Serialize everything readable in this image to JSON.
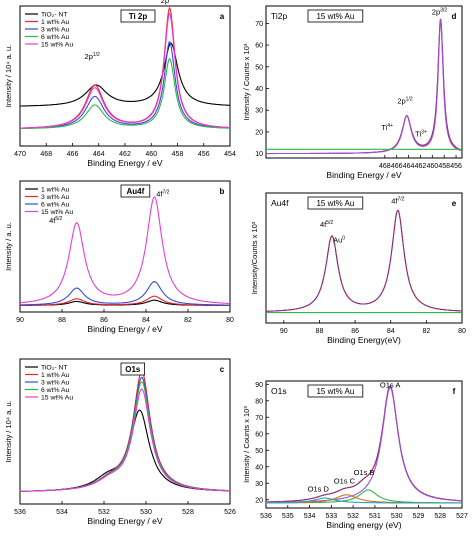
{
  "chart_data": [
    {
      "id": "a",
      "type": "line",
      "panel_letter": "a",
      "boxed_title": "Ti 2p",
      "xlabel": "Binding Energy / eV",
      "ylabel": "Intensity / 10⁴ a. u.",
      "xlim": [
        470,
        454
      ],
      "xticks": [
        "470",
        "468",
        "466",
        "464",
        "462",
        "460",
        "458",
        "456",
        "454"
      ],
      "ylim": [
        0,
        1
      ],
      "grid": false,
      "legend_position": "top-left",
      "legend": [
        "TiO₂- NT",
        "1 wt% Au",
        "3 wt% Au",
        "6 wt% Au",
        "15 wt% Au"
      ],
      "series": [
        {
          "name": "TiO₂- NT",
          "color": "#000000",
          "baseline": 0.28,
          "peaks": [
            {
              "center": 458.5,
              "height": 0.45,
              "width": 0.65
            },
            {
              "center": 464.2,
              "height": 0.15,
              "width": 1.0
            }
          ]
        },
        {
          "name": "1 wt% Au",
          "color": "#e8242b",
          "baseline": 0.12,
          "peaks": [
            {
              "center": 458.6,
              "height": 0.86,
              "width": 0.5
            },
            {
              "center": 464.3,
              "height": 0.31,
              "width": 0.85
            }
          ]
        },
        {
          "name": "3 wt% Au",
          "color": "#3a4bd6",
          "baseline": 0.12,
          "peaks": [
            {
              "center": 458.6,
              "height": 0.62,
              "width": 0.5
            },
            {
              "center": 464.3,
              "height": 0.23,
              "width": 0.85
            }
          ]
        },
        {
          "name": "6 wt% Au",
          "color": "#2fb84a",
          "baseline": 0.12,
          "peaks": [
            {
              "center": 458.6,
              "height": 0.5,
              "width": 0.5
            },
            {
              "center": 464.3,
              "height": 0.17,
              "width": 0.85
            }
          ]
        },
        {
          "name": "15 wt% Au",
          "color": "#e43ddc",
          "baseline": 0.12,
          "peaks": [
            {
              "center": 458.6,
              "height": 0.82,
              "width": 0.5
            },
            {
              "center": 464.3,
              "height": 0.29,
              "width": 0.85
            }
          ]
        }
      ],
      "annotations": [
        {
          "text": "2p",
          "sup": "1/2",
          "x": 464.5,
          "y": 0.62
        },
        {
          "text": "2p",
          "sup": "3/2",
          "x": 458.7,
          "y": 1.02
        }
      ]
    },
    {
      "id": "b",
      "type": "line",
      "panel_letter": "b",
      "boxed_title": "Au4f",
      "xlabel": "Binding Energy / eV",
      "ylabel": "Intensity / a. u.",
      "xlim": [
        90,
        80
      ],
      "xticks": [
        "90",
        "88",
        "86",
        "84",
        "82",
        "80"
      ],
      "ylim": [
        0,
        1
      ],
      "grid": false,
      "legend_position": "top-left",
      "legend": [
        "1 wt% Au",
        "3 wt% Au",
        "6 wt% Au",
        "15 wt% Au"
      ],
      "series": [
        {
          "name": "1 wt% Au",
          "color": "#000000",
          "baseline": 0.05,
          "peaks": [
            {
              "center": 87.3,
              "height": 0.03,
              "width": 0.45
            },
            {
              "center": 83.6,
              "height": 0.04,
              "width": 0.45
            }
          ]
        },
        {
          "name": "3 wt% Au",
          "color": "#e8242b",
          "baseline": 0.05,
          "peaks": [
            {
              "center": 87.3,
              "height": 0.05,
              "width": 0.45
            },
            {
              "center": 83.6,
              "height": 0.07,
              "width": 0.45
            }
          ]
        },
        {
          "name": "6 wt% Au",
          "color": "#3a4bd6",
          "baseline": 0.05,
          "peaks": [
            {
              "center": 87.3,
              "height": 0.13,
              "width": 0.45
            },
            {
              "center": 83.6,
              "height": 0.18,
              "width": 0.45
            }
          ]
        },
        {
          "name": "15 wt% Au",
          "color": "#e43ddc",
          "baseline": 0.05,
          "peaks": [
            {
              "center": 87.3,
              "height": 0.62,
              "width": 0.45
            },
            {
              "center": 83.6,
              "height": 0.82,
              "width": 0.45
            }
          ]
        }
      ],
      "annotations": [
        {
          "text": "4f",
          "sup": "5/2",
          "x": 88.3,
          "y": 0.68
        },
        {
          "text": "4f",
          "sup": "7/2",
          "x": 83.2,
          "y": 0.88
        }
      ]
    },
    {
      "id": "c",
      "type": "line",
      "panel_letter": "c",
      "boxed_title": "O1s",
      "xlabel": "Binding Energy / eV",
      "ylabel": "Intensity / 10⁴ a. u.",
      "xlim": [
        536,
        526
      ],
      "xticks": [
        "536",
        "534",
        "532",
        "530",
        "528",
        "526"
      ],
      "ylim": [
        0,
        1
      ],
      "grid": false,
      "legend_position": "top-left",
      "legend": [
        "TiO₂- NT",
        "1 wt% Au",
        "3 wt% Au",
        "6 wt% Au",
        "15 wt% Au"
      ],
      "series": [
        {
          "name": "TiO₂- NT",
          "color": "#000000",
          "baseline": 0.08,
          "peaks": [
            {
              "center": 530.3,
              "height": 0.55,
              "width": 0.55
            },
            {
              "center": 531.8,
              "height": 0.08,
              "width": 0.8
            }
          ]
        },
        {
          "name": "1 wt% Au",
          "color": "#e8242b",
          "baseline": 0.08,
          "peaks": [
            {
              "center": 530.2,
              "height": 0.82,
              "width": 0.5
            },
            {
              "center": 531.7,
              "height": 0.06,
              "width": 0.8
            }
          ]
        },
        {
          "name": "3 wt% Au",
          "color": "#3a4bd6",
          "baseline": 0.08,
          "peaks": [
            {
              "center": 530.2,
              "height": 0.78,
              "width": 0.5
            },
            {
              "center": 531.7,
              "height": 0.06,
              "width": 0.8
            }
          ]
        },
        {
          "name": "6 wt% Au",
          "color": "#2fb84a",
          "baseline": 0.08,
          "peaks": [
            {
              "center": 530.2,
              "height": 0.75,
              "width": 0.5
            },
            {
              "center": 531.7,
              "height": 0.06,
              "width": 0.8
            }
          ]
        },
        {
          "name": "15 wt% Au",
          "color": "#e43ddc",
          "baseline": 0.08,
          "peaks": [
            {
              "center": 530.2,
              "height": 0.7,
              "width": 0.5
            },
            {
              "center": 531.7,
              "height": 0.06,
              "width": 0.8
            }
          ]
        }
      ],
      "annotations": []
    },
    {
      "id": "d",
      "type": "line",
      "panel_letter": "d",
      "title": "Ti2p",
      "boxed_title": "15 wt% Au",
      "xlabel": "Binding Energy / eV",
      "ylabel": "Intensity / Counts x 10³",
      "xlim": [
        488,
        455
      ],
      "xticks": [
        "468",
        "466",
        "464",
        "462",
        "460",
        "458",
        "456"
      ],
      "xtick_values": [
        468,
        466,
        464,
        462,
        460,
        458,
        456
      ],
      "ylim": [
        8,
        78
      ],
      "yticks": [
        10,
        20,
        30,
        40,
        50,
        60,
        70
      ],
      "grid": false,
      "series": [
        {
          "name": "",
          "color": "#2233cc",
          "style": "solid",
          "baseline": 10,
          "peaks": [
            {
              "center": 458.6,
              "height": 62,
              "width": 0.55
            },
            {
              "center": 464.3,
              "height": 17,
              "width": 0.95
            }
          ]
        },
        {
          "name": "",
          "color": "#e8242b",
          "style": "dashed",
          "baseline": 10,
          "peaks": [
            {
              "center": 458.6,
              "height": 62,
              "width": 0.55
            },
            {
              "center": 464.3,
              "height": 17,
              "width": 0.95
            }
          ]
        },
        {
          "name": "",
          "color": "#a050d0",
          "style": "solid",
          "baseline": 10,
          "peaks": [
            {
              "center": 458.6,
              "height": 62,
              "width": 0.5
            },
            {
              "center": 464.3,
              "height": 17,
              "width": 0.9
            }
          ]
        },
        {
          "name": "",
          "color": "#2fb84a",
          "style": "solid",
          "flat": 12
        }
      ],
      "annotations": [
        {
          "text": "Ti",
          "sup": "4+",
          "x": 467.6,
          "y": 21
        },
        {
          "text": "2p",
          "sup": "1/2",
          "x": 464.6,
          "y": 33
        },
        {
          "text": "Ti",
          "sup": "3+",
          "x": 461.9,
          "y": 18
        },
        {
          "text": "2p",
          "sup": "3/2",
          "x": 458.8,
          "y": 74
        }
      ]
    },
    {
      "id": "e",
      "type": "line",
      "panel_letter": "e",
      "title": "Au4f",
      "boxed_title": "15 wt% Au",
      "xlabel": "Binding Energy(eV)",
      "ylabel": "Intensity/Counts x 10³",
      "xlim": [
        91,
        80
      ],
      "xticks": [
        "90",
        "88",
        "86",
        "84",
        "82",
        "80"
      ],
      "ylim": [
        0,
        1
      ],
      "grid": false,
      "series": [
        {
          "name": "",
          "color": "#2233cc",
          "style": "solid",
          "baseline": 0.08,
          "peaks": [
            {
              "center": 87.3,
              "height": 0.58,
              "width": 0.42
            },
            {
              "center": 83.6,
              "height": 0.78,
              "width": 0.42
            }
          ]
        },
        {
          "name": "",
          "color": "#e8242b",
          "style": "dashed",
          "baseline": 0.08,
          "peaks": [
            {
              "center": 87.3,
              "height": 0.58,
              "width": 0.42
            },
            {
              "center": 83.6,
              "height": 0.78,
              "width": 0.42
            }
          ]
        },
        {
          "name": "",
          "color": "#2fb84a",
          "style": "solid",
          "flat": 0.08
        }
      ],
      "annotations": [
        {
          "text": "4f",
          "sup": "5/2",
          "x": 87.6,
          "y": 0.74
        },
        {
          "text": "Au",
          "sup": "0",
          "x": 86.9,
          "y": 0.62
        },
        {
          "text": "4f",
          "sup": "7/2",
          "x": 83.6,
          "y": 0.92
        }
      ]
    },
    {
      "id": "f",
      "type": "line",
      "panel_letter": "f",
      "title": "O1s",
      "boxed_title": "15 wt% Au",
      "xlabel": "Binding energy (eV)",
      "ylabel": "Intensity / Counts x 10³",
      "xlim": [
        536,
        527
      ],
      "xticks": [
        "536",
        "535",
        "534",
        "533",
        "532",
        "531",
        "530",
        "529",
        "528",
        "527"
      ],
      "ylim": [
        15,
        92
      ],
      "yticks": [
        20,
        30,
        40,
        50,
        60,
        70,
        80,
        90
      ],
      "grid": false,
      "series": [
        {
          "name": "",
          "color": "#2233cc",
          "style": "solid",
          "baseline": 18,
          "peaks": [
            {
              "center": 530.3,
              "height": 70,
              "width": 0.45
            },
            {
              "center": 531.5,
              "height": 5,
              "width": 0.5
            },
            {
              "center": 532.4,
              "height": 4,
              "width": 0.55
            },
            {
              "center": 533.3,
              "height": 2,
              "width": 0.6
            }
          ]
        },
        {
          "name": "",
          "color": "#e8242b",
          "style": "dashed",
          "baseline": 18,
          "peaks": [
            {
              "center": 530.3,
              "height": 70,
              "width": 0.45
            },
            {
              "center": 531.5,
              "height": 5,
              "width": 0.5
            },
            {
              "center": 532.4,
              "height": 4,
              "width": 0.55
            },
            {
              "center": 533.3,
              "height": 2,
              "width": 0.6
            }
          ]
        },
        {
          "name": "",
          "color": "#a050d0",
          "style": "solid",
          "baseline": 18,
          "peaks": [
            {
              "center": 530.3,
              "height": 70,
              "width": 0.45
            }
          ]
        },
        {
          "name": "",
          "color": "#2fb84a",
          "style": "solid",
          "baseline": 18,
          "peaks": [
            {
              "center": 531.3,
              "height": 8,
              "width": 0.5
            }
          ]
        },
        {
          "name": "",
          "color": "#d07020",
          "style": "solid",
          "baseline": 18,
          "peaks": [
            {
              "center": 532.3,
              "height": 5,
              "width": 0.6
            }
          ]
        },
        {
          "name": "",
          "color": "#30a0c0",
          "style": "solid",
          "baseline": 18,
          "peaks": [
            {
              "center": 533.3,
              "height": 3,
              "width": 0.6
            }
          ]
        }
      ],
      "annotations": [
        {
          "text": "O1s A",
          "x": 530.3,
          "y": 88
        },
        {
          "text": "O1s B",
          "x": 531.5,
          "y": 35
        },
        {
          "text": "O1s C",
          "x": 532.4,
          "y": 30
        },
        {
          "text": "O1s D",
          "x": 533.6,
          "y": 25
        }
      ]
    }
  ]
}
